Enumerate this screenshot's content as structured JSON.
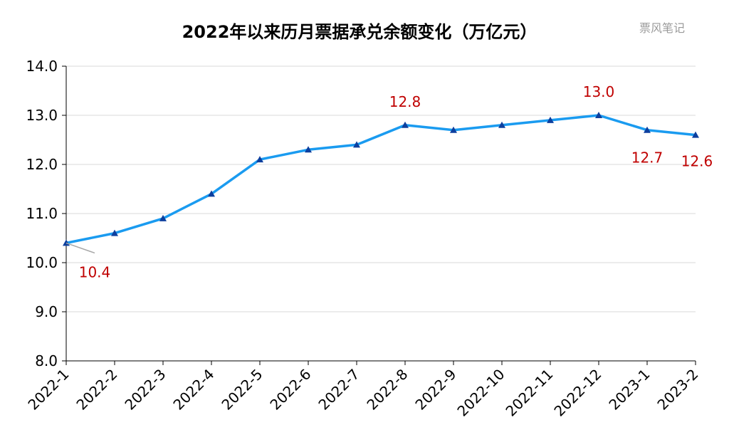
{
  "chart_data": {
    "type": "line",
    "title": "2022年以来历月票据承兑余额变化（万亿元）",
    "watermark": "票风笔记",
    "categories": [
      "2022-1",
      "2022-2",
      "2022-3",
      "2022-4",
      "2022-5",
      "2022-6",
      "2022-7",
      "2022-8",
      "2022-9",
      "2022-10",
      "2022-11",
      "2022-12",
      "2023-1",
      "2023-2"
    ],
    "series": [
      {
        "values": [
          10.4,
          10.6,
          10.9,
          11.4,
          12.1,
          12.3,
          12.4,
          12.8,
          12.7,
          12.8,
          12.9,
          13.0,
          12.7,
          12.6
        ]
      }
    ],
    "yticks": [
      "8.0",
      "9.0",
      "10.0",
      "11.0",
      "12.0",
      "13.0",
      "14.0"
    ],
    "ylim": [
      8.0,
      14.0
    ],
    "grid": true,
    "data_labels": [
      {
        "category": "2022-1",
        "text": "10.4"
      },
      {
        "category": "2022-8",
        "text": "12.8"
      },
      {
        "category": "2022-12",
        "text": "13.0"
      },
      {
        "category": "2023-1",
        "text": "12.7"
      },
      {
        "category": "2023-2",
        "text": "12.6"
      }
    ],
    "colors": {
      "line": "#1a9bf0",
      "marker": "#0d3f9e",
      "label": "#c00000",
      "grid": "#d9d9d9",
      "axis": "#000000"
    }
  }
}
